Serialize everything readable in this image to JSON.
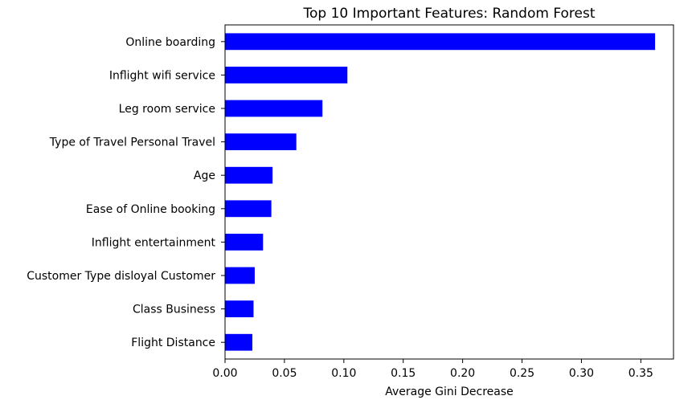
{
  "chart_data": {
    "type": "bar",
    "orientation": "horizontal",
    "title": "Top 10 Important Features: Random Forest",
    "xlabel": "Average Gini Decrease",
    "ylabel": "",
    "categories": [
      "Online boarding",
      "Inflight wifi service",
      "Leg room service",
      "Type of Travel Personal Travel",
      "Age",
      "Ease of Online booking",
      "Inflight entertainment",
      "Customer Type disloyal Customer",
      "Class Business",
      "Flight Distance"
    ],
    "values": [
      0.362,
      0.103,
      0.082,
      0.06,
      0.04,
      0.039,
      0.032,
      0.025,
      0.024,
      0.023
    ],
    "xlim": [
      0,
      0.3775
    ],
    "xticks": [
      0.0,
      0.05,
      0.1,
      0.15,
      0.2,
      0.25,
      0.3,
      0.35
    ],
    "xtick_labels": [
      "0.00",
      "0.05",
      "0.10",
      "0.15",
      "0.20",
      "0.25",
      "0.30",
      "0.35"
    ],
    "grid": false,
    "legend": "none",
    "bar_color": "#0000ff"
  }
}
